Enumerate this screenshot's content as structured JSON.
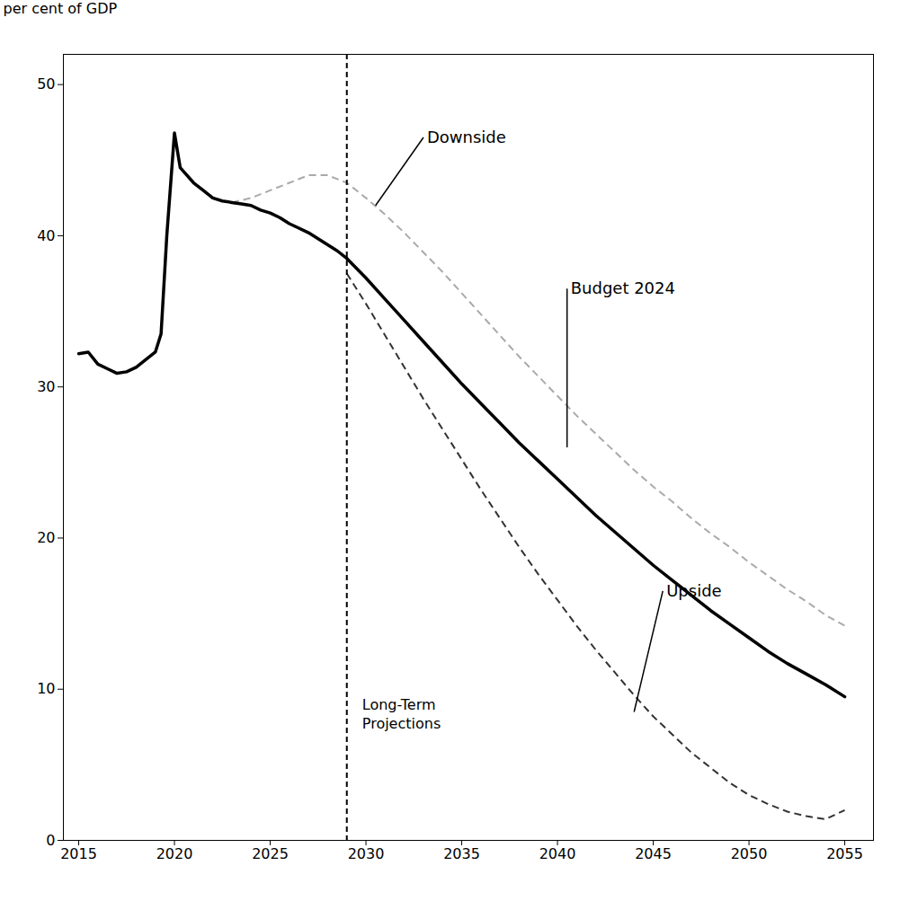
{
  "chart_data": {
    "type": "line",
    "ylabel": "per cent of GDP",
    "xlim": [
      2014.2,
      2056.5
    ],
    "ylim": [
      0,
      52
    ],
    "xticks": [
      2015,
      2020,
      2025,
      2030,
      2035,
      2040,
      2045,
      2050,
      2055
    ],
    "yticks": [
      0,
      10,
      20,
      30,
      40,
      50
    ],
    "grid": false,
    "series": [
      {
        "name": "Downside",
        "color": "#aaaaaa",
        "line_style": "dashed",
        "x": [
          2023,
          2024,
          2025,
          2026,
          2027,
          2028,
          2029,
          2030,
          2031,
          2032,
          2033,
          2034,
          2035,
          2036,
          2037,
          2038,
          2039,
          2040,
          2041,
          2042,
          2043,
          2044,
          2045,
          2046,
          2047,
          2048,
          2049,
          2050,
          2051,
          2052,
          2053,
          2054,
          2055
        ],
        "values": [
          42.2,
          42.5,
          43.0,
          43.5,
          44.0,
          44.0,
          43.5,
          42.5,
          41.4,
          40.2,
          38.9,
          37.6,
          36.2,
          34.8,
          33.4,
          32.0,
          30.7,
          29.4,
          28.1,
          26.9,
          25.7,
          24.5,
          23.4,
          22.4,
          21.3,
          20.3,
          19.4,
          18.4,
          17.5,
          16.6,
          15.8,
          14.9,
          14.2
        ]
      },
      {
        "name": "Upside",
        "color": "#333333",
        "line_style": "dashed",
        "x": [
          2029,
          2030,
          2031,
          2032,
          2033,
          2034,
          2035,
          2036,
          2037,
          2038,
          2039,
          2040,
          2041,
          2042,
          2043,
          2044,
          2045,
          2046,
          2047,
          2048,
          2049,
          2050,
          2051,
          2052,
          2053,
          2054,
          2055
        ],
        "values": [
          37.5,
          35.5,
          33.4,
          31.3,
          29.2,
          27.2,
          25.2,
          23.2,
          21.3,
          19.4,
          17.6,
          15.9,
          14.2,
          12.6,
          11.1,
          9.6,
          8.2,
          7.0,
          5.8,
          4.8,
          3.8,
          3.0,
          2.4,
          1.9,
          1.6,
          1.4,
          2.0
        ]
      },
      {
        "color": "#000000",
        "line_style": "solid",
        "x": [
          2015,
          2015.5,
          2016,
          2016.5,
          2017,
          2017.5,
          2018,
          2018.5,
          2019,
          2019.3,
          2019.6,
          2020.0,
          2020.3,
          2021.0,
          2021.5,
          2022.0,
          2022.5,
          2023.0,
          2023.5,
          2024.0,
          2024.5,
          2025.0,
          2025.5,
          2026.0,
          2026.5,
          2027.0,
          2027.5,
          2028.0,
          2028.5,
          2029.0
        ],
        "values": [
          32.2,
          32.3,
          31.5,
          31.2,
          30.9,
          31.0,
          31.3,
          31.8,
          32.3,
          33.5,
          40.0,
          46.8,
          44.5,
          43.5,
          43.0,
          42.5,
          42.3,
          42.2,
          42.1,
          42.0,
          41.7,
          41.5,
          41.2,
          40.8,
          40.5,
          40.2,
          39.8,
          39.4,
          39.0,
          38.5
        ]
      },
      {
        "name": "Budget 2024",
        "color": "#000000",
        "line_style": "solid",
        "x": [
          2029,
          2030,
          2031,
          2032,
          2033,
          2034,
          2035,
          2036,
          2037,
          2038,
          2039,
          2040,
          2041,
          2042,
          2043,
          2044,
          2045,
          2046,
          2047,
          2048,
          2049,
          2050,
          2051,
          2052,
          2053,
          2054,
          2055
        ],
        "values": [
          38.5,
          37.2,
          35.8,
          34.4,
          33.0,
          31.6,
          30.2,
          28.9,
          27.6,
          26.3,
          25.1,
          23.9,
          22.7,
          21.5,
          20.4,
          19.3,
          18.2,
          17.2,
          16.2,
          15.2,
          14.3,
          13.4,
          12.5,
          11.7,
          11.0,
          10.3,
          9.5
        ]
      }
    ],
    "vertical_line": {
      "x": 2029,
      "line_style": "dashed"
    },
    "annotations": [
      {
        "text": "Downside",
        "x": 2033.0,
        "y": 46.5,
        "arrow_x": 2030.5,
        "arrow_y": 42.0
      },
      {
        "text": "Budget 2024",
        "x": 2040.5,
        "y": 36.5,
        "arrow_x": 2040.5,
        "arrow_y": 26.0
      },
      {
        "text": "Upside",
        "x": 2045.5,
        "y": 16.5,
        "arrow_x": 2044.0,
        "arrow_y": 8.5
      },
      {
        "text": "Long-Term\nProjections",
        "x": 2029.8,
        "y": 9.5
      }
    ]
  }
}
